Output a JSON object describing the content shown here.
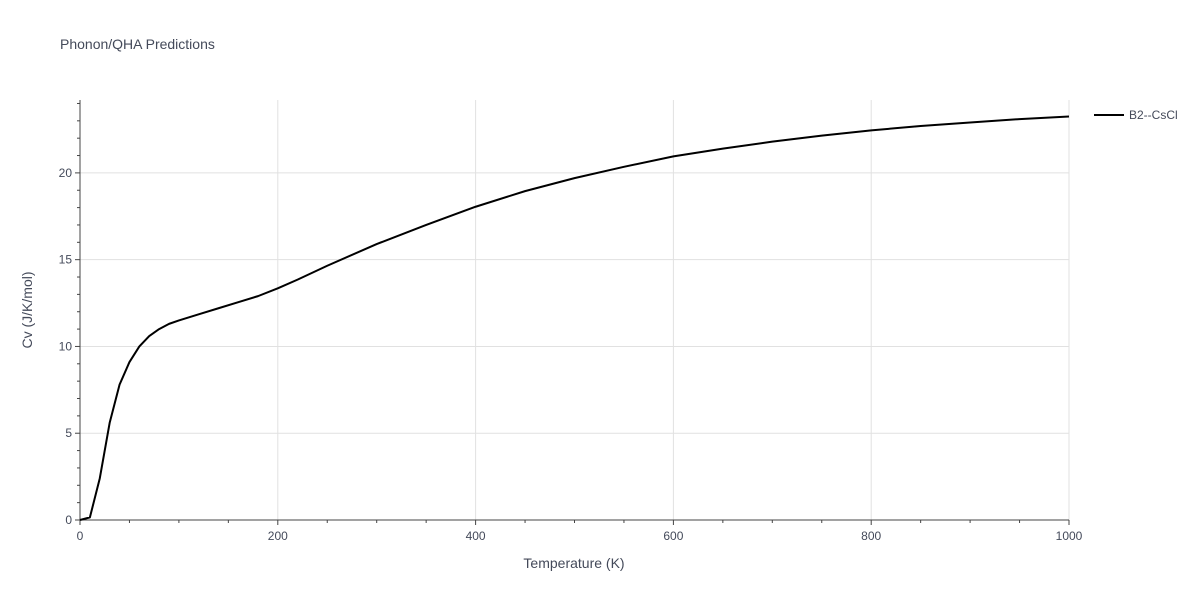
{
  "chart_data": {
    "type": "line",
    "title": "Phonon/QHA Predictions",
    "xlabel": "Temperature (K)",
    "ylabel": "Cv (J/K/mol)",
    "xlim": [
      0,
      1000
    ],
    "ylim": [
      0,
      24.2
    ],
    "x_ticks": [
      0,
      200,
      400,
      600,
      800,
      1000
    ],
    "y_ticks": [
      0,
      5,
      10,
      15,
      20
    ],
    "grid": true,
    "legend_position": "top-right",
    "series": [
      {
        "name": "B2--CsCl",
        "color": "#000000",
        "x": [
          0,
          10,
          20,
          30,
          40,
          50,
          60,
          70,
          80,
          90,
          100,
          120,
          140,
          160,
          180,
          200,
          220,
          250,
          300,
          350,
          400,
          450,
          500,
          550,
          600,
          650,
          700,
          750,
          800,
          850,
          900,
          950,
          1000
        ],
        "y": [
          0,
          0.15,
          2.4,
          5.6,
          7.8,
          9.1,
          10.0,
          10.6,
          11.0,
          11.3,
          11.5,
          11.85,
          12.2,
          12.55,
          12.9,
          13.35,
          13.85,
          14.65,
          15.9,
          17.0,
          18.05,
          18.95,
          19.7,
          20.35,
          20.95,
          21.4,
          21.8,
          22.15,
          22.45,
          22.7,
          22.9,
          23.1,
          23.25
        ]
      }
    ]
  }
}
